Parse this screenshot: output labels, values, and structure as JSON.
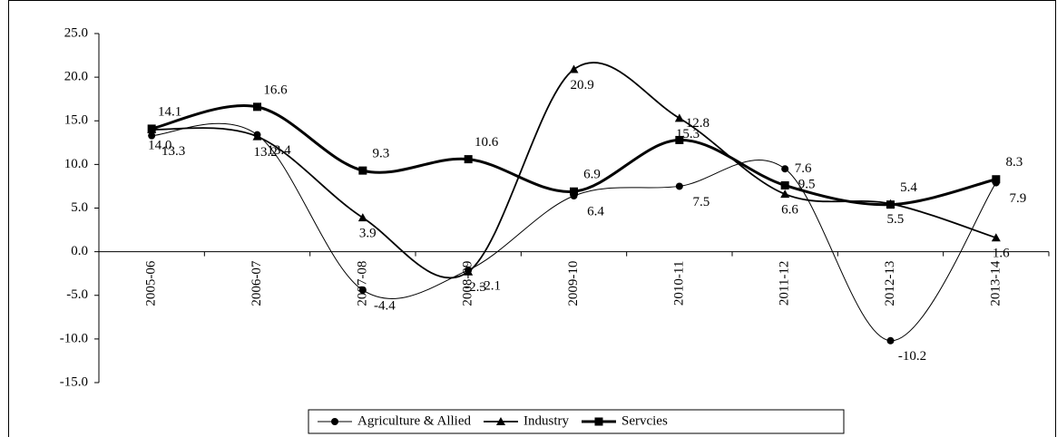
{
  "chart_data": {
    "type": "line",
    "categories": [
      "2005-06",
      "2006-07",
      "2007-08",
      "2008-09",
      "2009-10",
      "2010-11",
      "2011-12",
      "2012-13",
      "2013-14"
    ],
    "series": [
      {
        "name": "Agriculture & Allied",
        "color": "#000000",
        "marker": "circle",
        "values": [
          13.3,
          13.4,
          -4.4,
          -2.1,
          6.4,
          7.5,
          9.5,
          -10.2,
          7.9
        ],
        "value_labels": [
          "13.3",
          "13.4",
          "-4.4",
          "-2.1",
          "6.4",
          "7.5",
          "9.5",
          "-10.2",
          "7.9"
        ]
      },
      {
        "name": "Industry",
        "color": "#000000",
        "marker": "triangle",
        "values": [
          14,
          13.2,
          3.9,
          -2.3,
          20.9,
          15.3,
          6.6,
          5.5,
          1.6
        ],
        "value_labels": [
          "14.0",
          "13.2",
          "3.9",
          "-2.3",
          "20.9",
          "15.3",
          "6.6",
          "5.5",
          "1.6"
        ]
      },
      {
        "name": "Servcies",
        "color": "#000000",
        "marker": "square",
        "values": [
          14.1,
          16.6,
          9.3,
          10.6,
          6.9,
          12.8,
          7.6,
          5.4,
          8.3
        ],
        "value_labels": [
          "14.1",
          "16.6",
          "9.3",
          "10.6",
          "6.9",
          "12.8",
          "7.6",
          "5.4",
          "8.3"
        ]
      }
    ],
    "ylim": [
      -15,
      25
    ],
    "yticks": [
      {
        "value": -15,
        "label": "-15.0"
      },
      {
        "value": -10,
        "label": "-10.0"
      },
      {
        "value": -5,
        "label": "-5.0"
      },
      {
        "value": 0,
        "label": "0.0"
      },
      {
        "value": 5,
        "label": "5.0"
      },
      {
        "value": 10,
        "label": "10.0"
      },
      {
        "value": 15,
        "label": "15.0"
      },
      {
        "value": 20,
        "label": "20.0"
      },
      {
        "value": 25,
        "label": "25.0"
      }
    ],
    "grid": false,
    "legend": "bottom"
  }
}
